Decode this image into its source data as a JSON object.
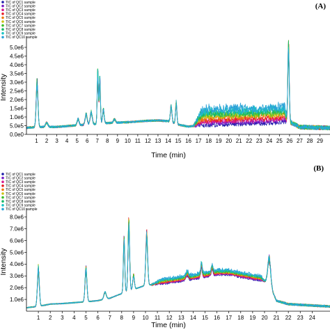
{
  "chart_data": [
    {
      "type": "line",
      "panel_label": "(A)",
      "xlabel": "Time (min)",
      "ylabel": "Intensity",
      "xlim": [
        0,
        30
      ],
      "ylim": [
        0,
        5400000
      ],
      "x_ticks": [
        1,
        2,
        3,
        4,
        5,
        6,
        7,
        8,
        9,
        10,
        11,
        12,
        13,
        14,
        15,
        16,
        17,
        18,
        19,
        20,
        21,
        22,
        23,
        24,
        25,
        26,
        27,
        28,
        29
      ],
      "y_ticks": [
        {
          "value": 0,
          "label": "0.0e0"
        },
        {
          "value": 500000,
          "label": "5.0e5"
        },
        {
          "value": 1000000,
          "label": "1.0e6"
        },
        {
          "value": 1500000,
          "label": "1.5e6"
        },
        {
          "value": 2000000,
          "label": "2.0e6"
        },
        {
          "value": 2500000,
          "label": "2.5e6"
        },
        {
          "value": 3000000,
          "label": "3.0e6"
        },
        {
          "value": 3500000,
          "label": "3.5e6"
        },
        {
          "value": 4000000,
          "label": "4.0e6"
        },
        {
          "value": 4500000,
          "label": "4.5e6"
        },
        {
          "value": 5000000,
          "label": "5.0e6"
        }
      ],
      "grid": false,
      "legend_position": "top-left",
      "series": [
        {
          "name": "TIC of QC1 sample",
          "color": "#1a1aa8"
        },
        {
          "name": "TIC of QC2 sample",
          "color": "#7a1fc8"
        },
        {
          "name": "TIC of QC3 sample",
          "color": "#d81b8c"
        },
        {
          "name": "TIC of QC4 sample",
          "color": "#e81e25"
        },
        {
          "name": "TIC of QC5 sample",
          "color": "#f07a10"
        },
        {
          "name": "TIC of QC6 sample",
          "color": "#c9c214"
        },
        {
          "name": "TIC of QC7 sample",
          "color": "#3bbf2a"
        },
        {
          "name": "TIC of QC8 sample",
          "color": "#1ab86a"
        },
        {
          "name": "TIC of QC9 sample",
          "color": "#19c4c4"
        },
        {
          "name": "TIC of QC10 sample",
          "color": "#2aa3d8"
        }
      ],
      "shape": {
        "baseline": [
          [
            0,
            380000
          ],
          [
            1,
            420000
          ],
          [
            3,
            430000
          ],
          [
            5,
            520000
          ],
          [
            6,
            560000
          ],
          [
            8,
            650000
          ],
          [
            10,
            700000
          ],
          [
            12,
            780000
          ],
          [
            13,
            800000
          ],
          [
            14,
            760000
          ],
          [
            15,
            560000
          ],
          [
            16,
            450000
          ],
          [
            17,
            520000
          ],
          [
            19,
            560000
          ],
          [
            21,
            600000
          ],
          [
            23,
            620000
          ],
          [
            25,
            680000
          ],
          [
            25.9,
            750000
          ],
          [
            26.4,
            600000
          ],
          [
            27,
            420000
          ],
          [
            30,
            370000
          ]
        ],
        "peaks": [
          {
            "x": 1.05,
            "height": 2500000,
            "width": 0.09
          },
          {
            "x": 2.0,
            "height": 250000,
            "width": 0.12
          },
          {
            "x": 5.1,
            "height": 350000,
            "width": 0.1
          },
          {
            "x": 5.9,
            "height": 600000,
            "width": 0.1
          },
          {
            "x": 6.4,
            "height": 700000,
            "width": 0.1
          },
          {
            "x": 7.05,
            "height": 2900000,
            "width": 0.06
          },
          {
            "x": 7.25,
            "height": 2600000,
            "width": 0.06
          },
          {
            "x": 7.6,
            "height": 800000,
            "width": 0.08
          },
          {
            "x": 8.7,
            "height": 200000,
            "width": 0.1
          },
          {
            "x": 14.3,
            "height": 900000,
            "width": 0.08
          },
          {
            "x": 14.8,
            "height": 1200000,
            "width": 0.07
          },
          {
            "x": 25.9,
            "height": 4450000,
            "width": 0.07
          }
        ],
        "late_spread": {
          "from": 16.5,
          "to": 25.8,
          "max_extra": 1100000
        },
        "noise": 120000
      }
    },
    {
      "type": "line",
      "panel_label": "(B)",
      "xlabel": "Time (min)",
      "ylabel": "Intensity",
      "xlim": [
        0,
        25.5
      ],
      "ylim": [
        0,
        8400000
      ],
      "x_ticks": [
        1,
        2,
        3,
        4,
        5,
        6,
        7,
        8,
        9,
        10,
        11,
        12,
        13,
        14,
        15,
        16,
        17,
        18,
        19,
        20,
        21,
        22,
        23,
        24
      ],
      "y_ticks": [
        {
          "value": 1000000,
          "label": "1.0e6"
        },
        {
          "value": 2000000,
          "label": "2.0e6"
        },
        {
          "value": 3000000,
          "label": "3.0e6"
        },
        {
          "value": 4000000,
          "label": "4.0e6"
        },
        {
          "value": 5000000,
          "label": "5.0e6"
        },
        {
          "value": 6000000,
          "label": "6.0e6"
        },
        {
          "value": 7000000,
          "label": "7.0e6"
        },
        {
          "value": 8000000,
          "label": "8.0e6"
        }
      ],
      "grid": false,
      "legend_position": "top-left",
      "series": [
        {
          "name": "TIC of QC1 sample",
          "color": "#1a1aa8"
        },
        {
          "name": "TIC of QC2 sample",
          "color": "#7a1fc8"
        },
        {
          "name": "TIC of QC3 sample",
          "color": "#d81b8c"
        },
        {
          "name": "TIC of QC4 sample",
          "color": "#e81e25"
        },
        {
          "name": "TIC of QC5 sample",
          "color": "#f07a10"
        },
        {
          "name": "TIC of QC6 sample",
          "color": "#c9c214"
        },
        {
          "name": "TIC of QC7 sample",
          "color": "#3bbf2a"
        },
        {
          "name": "TIC of QC8 sample",
          "color": "#1ab86a"
        },
        {
          "name": "TIC of QC9 sample",
          "color": "#19c4c4"
        },
        {
          "name": "TIC of QC10 sample",
          "color": "#2aa3d8"
        }
      ],
      "shape": {
        "baseline": [
          [
            0,
            300000
          ],
          [
            0.9,
            400000
          ],
          [
            2,
            600000
          ],
          [
            3,
            650000
          ],
          [
            5,
            800000
          ],
          [
            6,
            900000
          ],
          [
            7,
            1100000
          ],
          [
            8,
            1500000
          ],
          [
            10,
            2200000
          ],
          [
            12,
            2400000
          ],
          [
            14,
            2700000
          ],
          [
            16,
            3100000
          ],
          [
            17,
            3100000
          ],
          [
            18,
            2900000
          ],
          [
            19,
            2700000
          ],
          [
            19.8,
            2600000
          ],
          [
            20.3,
            2500000
          ],
          [
            21,
            900000
          ],
          [
            22,
            600000
          ],
          [
            25.5,
            400000
          ]
        ],
        "peaks": [
          {
            "x": 1.0,
            "height": 3200000,
            "width": 0.08
          },
          {
            "x": 5.0,
            "height": 2800000,
            "width": 0.08
          },
          {
            "x": 6.6,
            "height": 600000,
            "width": 0.1
          },
          {
            "x": 8.2,
            "height": 4500000,
            "width": 0.06
          },
          {
            "x": 8.6,
            "height": 5700000,
            "width": 0.07
          },
          {
            "x": 9.0,
            "height": 1200000,
            "width": 0.07
          },
          {
            "x": 10.1,
            "height": 4300000,
            "width": 0.08
          },
          {
            "x": 13.5,
            "height": 400000,
            "width": 0.1
          },
          {
            "x": 14.7,
            "height": 1000000,
            "width": 0.06
          },
          {
            "x": 15.6,
            "height": 600000,
            "width": 0.07
          },
          {
            "x": 20.4,
            "height": 2200000,
            "width": 0.12
          }
        ],
        "late_spread": {
          "from": 10.5,
          "to": 20.0,
          "max_extra": 500000
        },
        "noise": 90000
      }
    }
  ]
}
